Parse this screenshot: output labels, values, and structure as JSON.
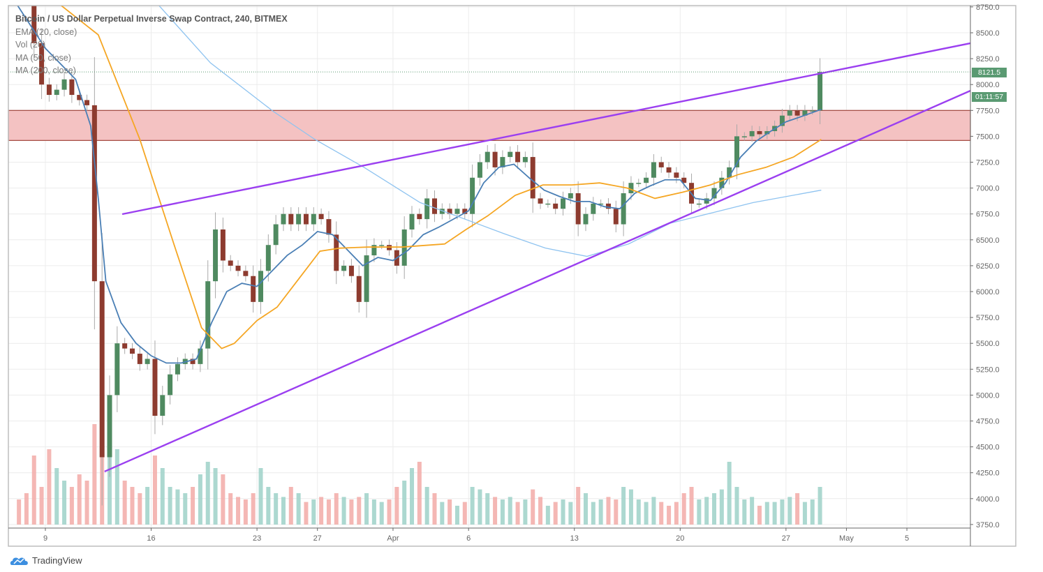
{
  "legend": {
    "title": "Bitcoin / US Dollar Perpetual Inverse Swap Contract, 240, BITMEX",
    "indicators": [
      "EMA (20, close)",
      "Vol (20)",
      "MA (50, close)",
      "MA (200, close)"
    ]
  },
  "branding": {
    "logo_text": "TradingView"
  },
  "colors": {
    "up": "#4f8a60",
    "down": "#8d3b2f",
    "wick": "#a9a9a9",
    "vol_up": "#9ed1c8",
    "vol_down": "#f2aaa7",
    "ema20": "#4a7fb5",
    "ma50": "#f5a623",
    "ma200": "#8ec3f0",
    "trendline": "#9b3ff0",
    "zone_fill": "#f4c2c2",
    "zone_border": "#a0453a",
    "price_label": "#5a9a72"
  },
  "chart_data": {
    "type": "candlestick",
    "title": "Bitcoin / US Dollar Perpetual Inverse Swap Contract, 240, BITMEX",
    "ylim": [
      3750,
      8750
    ],
    "y_ticks": [
      "3750.0",
      "4000.0",
      "4250.0",
      "4500.0",
      "4750.0",
      "5000.0",
      "5250.0",
      "5500.0",
      "5750.0",
      "6000.0",
      "6250.0",
      "6500.0",
      "6750.0",
      "7000.0",
      "7250.0",
      "7500.0",
      "7750.0",
      "8000.0",
      "8250.0",
      "8500.0",
      "8750.0"
    ],
    "x_ticks": [
      {
        "label": "9",
        "date": "03-09 00"
      },
      {
        "label": "16",
        "date": "03-16 00"
      },
      {
        "label": "23",
        "date": "03-23 00"
      },
      {
        "label": "27",
        "date": "03-27 00"
      },
      {
        "label": "Apr",
        "date": "04-01 00"
      },
      {
        "label": "6",
        "date": "04-06 00"
      },
      {
        "label": "13",
        "date": "04-13 00"
      },
      {
        "label": "20",
        "date": "04-20 00"
      },
      {
        "label": "27",
        "date": "04-27 00"
      },
      {
        "label": "May",
        "date": "05-01 00"
      },
      {
        "label": "5",
        "date": "05-05 00"
      }
    ],
    "first_open": 9000,
    "closes": [
      8900,
      8850,
      8400,
      8000,
      7900,
      7950,
      8050,
      7900,
      7850,
      7800,
      6100,
      4400,
      5000,
      5500,
      5450,
      5400,
      5300,
      5350,
      4800,
      5000,
      5200,
      5300,
      5350,
      5300,
      5450,
      6100,
      6600,
      6300,
      6250,
      6200,
      6150,
      5900,
      6200,
      6450,
      6650,
      6750,
      6650,
      6750,
      6650,
      6750,
      6700,
      6550,
      6200,
      6250,
      6150,
      5900,
      6350,
      6450,
      6450,
      6400,
      6250,
      6600,
      6750,
      6700,
      6900,
      6750,
      6800,
      6750,
      6800,
      6750,
      7100,
      7250,
      7350,
      7200,
      7300,
      7350,
      7250,
      7300,
      6900,
      6850,
      6850,
      6800,
      6900,
      6950,
      6650,
      6750,
      6850,
      6850,
      6800,
      6650,
      6950,
      7050,
      7050,
      7100,
      7250,
      7200,
      7150,
      7100,
      7050,
      6850,
      6850,
      6900,
      7000,
      7100,
      7200,
      7500,
      7500,
      7550,
      7520,
      7550,
      7600,
      7700,
      7750,
      7700,
      7750,
      7750,
      8121.5
    ],
    "volume_relative": [
      20,
      25,
      55,
      30,
      60,
      45,
      35,
      30,
      40,
      35,
      80,
      100,
      90,
      60,
      35,
      30,
      25,
      30,
      55,
      45,
      30,
      28,
      25,
      30,
      40,
      50,
      45,
      40,
      25,
      22,
      20,
      25,
      45,
      30,
      25,
      22,
      30,
      25,
      18,
      20,
      22,
      20,
      25,
      22,
      20,
      22,
      25,
      20,
      18,
      20,
      30,
      35,
      45,
      50,
      30,
      25,
      18,
      20,
      15,
      18,
      30,
      28,
      25,
      22,
      20,
      22,
      18,
      20,
      28,
      22,
      15,
      18,
      20,
      18,
      30,
      25,
      18,
      20,
      22,
      20,
      30,
      28,
      20,
      18,
      22,
      18,
      15,
      18,
      25,
      30,
      20,
      22,
      25,
      28,
      50,
      30,
      20,
      22,
      15,
      18,
      18,
      20,
      22,
      25,
      18,
      20,
      30
    ],
    "series": [
      {
        "name": "EMA (20, close)",
        "points": [
          [
            "03-07 00",
            8800
          ],
          [
            "03-09 00",
            8350
          ],
          [
            "03-11 00",
            8050
          ],
          [
            "03-12 00",
            7600
          ],
          [
            "03-12 12",
            6900
          ],
          [
            "03-13 00",
            6100
          ],
          [
            "03-14 00",
            5700
          ],
          [
            "03-15 00",
            5500
          ],
          [
            "03-16 00",
            5380
          ],
          [
            "03-17 00",
            5310
          ],
          [
            "03-18 00",
            5310
          ],
          [
            "03-19 00",
            5350
          ],
          [
            "03-20 00",
            5700
          ],
          [
            "03-21 00",
            6000
          ],
          [
            "03-22 00",
            6080
          ],
          [
            "03-23 00",
            6050
          ],
          [
            "03-24 00",
            6200
          ],
          [
            "03-25 00",
            6350
          ],
          [
            "03-26 00",
            6450
          ],
          [
            "03-27 00",
            6580
          ],
          [
            "03-28 00",
            6550
          ],
          [
            "03-29 00",
            6400
          ],
          [
            "03-30 00",
            6250
          ],
          [
            "03-31 00",
            6330
          ],
          [
            "04-01 00",
            6300
          ],
          [
            "04-02 00",
            6400
          ],
          [
            "04-03 00",
            6550
          ],
          [
            "04-04 00",
            6620
          ],
          [
            "04-05 00",
            6700
          ],
          [
            "04-06 00",
            6780
          ],
          [
            "04-07 00",
            7050
          ],
          [
            "04-08 00",
            7200
          ],
          [
            "04-09 00",
            7230
          ],
          [
            "04-10 00",
            7100
          ],
          [
            "04-11 00",
            6980
          ],
          [
            "04-12 00",
            6920
          ],
          [
            "04-13 00",
            6870
          ],
          [
            "04-14 00",
            6870
          ],
          [
            "04-15 00",
            6820
          ],
          [
            "04-16 00",
            6800
          ],
          [
            "04-17 00",
            6950
          ],
          [
            "04-18 00",
            7020
          ],
          [
            "04-19 00",
            7080
          ],
          [
            "04-20 00",
            7080
          ],
          [
            "04-21 00",
            6900
          ],
          [
            "04-22 00",
            6880
          ],
          [
            "04-23 00",
            7050
          ],
          [
            "04-24 00",
            7300
          ],
          [
            "04-25 00",
            7450
          ],
          [
            "04-26 00",
            7550
          ],
          [
            "04-27 00",
            7640
          ],
          [
            "04-28 00",
            7690
          ],
          [
            "04-29 08",
            7760
          ]
        ]
      },
      {
        "name": "MA (50, close)",
        "points": [
          [
            "03-08 00",
            9000
          ],
          [
            "03-12 12",
            8480
          ],
          [
            "03-15 06",
            7470
          ],
          [
            "03-17 12",
            6460
          ],
          [
            "03-19 08",
            5650
          ],
          [
            "03-20 16",
            5450
          ],
          [
            "03-21 12",
            5500
          ],
          [
            "03-23 00",
            5720
          ],
          [
            "03-24 08",
            5850
          ],
          [
            "03-25 18",
            6120
          ],
          [
            "03-27 04",
            6390
          ],
          [
            "03-28 12",
            6420
          ],
          [
            "03-30 08",
            6430
          ],
          [
            "04-01 14",
            6430
          ],
          [
            "04-04 10",
            6460
          ],
          [
            "04-05 20",
            6600
          ],
          [
            "04-07 06",
            6730
          ],
          [
            "04-09 02",
            6930
          ],
          [
            "04-10 22",
            7030
          ],
          [
            "04-12 20",
            7030
          ],
          [
            "04-14 16",
            7050
          ],
          [
            "04-16 12",
            7000
          ],
          [
            "04-18 08",
            6900
          ],
          [
            "04-20 04",
            6960
          ],
          [
            "04-22 00",
            7030
          ],
          [
            "04-23 20",
            7130
          ],
          [
            "04-25 16",
            7200
          ],
          [
            "04-27 12",
            7300
          ],
          [
            "04-29 08",
            7470
          ]
        ]
      },
      {
        "name": "MA (200, close)",
        "points": [
          [
            "03-16 04",
            8820
          ],
          [
            "03-19 22",
            8210
          ],
          [
            "03-24 02",
            7740
          ],
          [
            "03-26 20",
            7470
          ],
          [
            "03-30 02",
            7200
          ],
          [
            "04-02 19",
            6860
          ],
          [
            "04-06 12",
            6660
          ],
          [
            "04-08 08",
            6560
          ],
          [
            "04-11 02",
            6420
          ],
          [
            "04-13 20",
            6340
          ],
          [
            "04-16 14",
            6460
          ],
          [
            "04-19 08",
            6660
          ],
          [
            "04-22 02",
            6760
          ],
          [
            "04-24 20",
            6860
          ],
          [
            "04-29 08",
            6980
          ]
        ]
      }
    ],
    "trendlines": [
      {
        "from": [
          "03-14 02",
          6748
        ],
        "to": [
          "05-09 05",
          8399
        ]
      },
      {
        "from": [
          "03-12 22",
          4262
        ],
        "to": [
          "05-09 05",
          7941
        ]
      }
    ],
    "zone": {
      "low": 7460,
      "high": 7750
    },
    "last_price": "8121.5",
    "countdown": "01:11:57"
  }
}
